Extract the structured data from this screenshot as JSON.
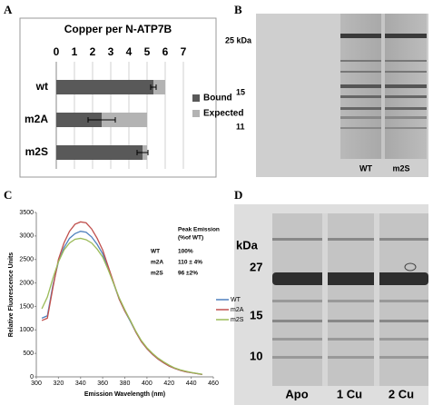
{
  "panel_labels": [
    "A",
    "B",
    "C",
    "D"
  ],
  "chart_data": [
    {
      "type": "hbar",
      "title": "Copper per N-ATP7B",
      "categories": [
        "wt",
        "m2A",
        "m2S"
      ],
      "series": [
        {
          "name": "Bound",
          "color": "#595959",
          "values": [
            5.35,
            2.5,
            4.75
          ],
          "errors": [
            0.15,
            0.75,
            0.3
          ]
        },
        {
          "name": "Expected",
          "color": "#b3b3b3",
          "values": [
            6,
            5,
            5
          ]
        }
      ],
      "xlim": [
        0,
        7
      ],
      "xticks": [
        0,
        1,
        2,
        3,
        4,
        5,
        6,
        7
      ],
      "grid": true
    },
    {
      "type": "line",
      "xlabel": "Emission Wavelength (nm)",
      "ylabel": "Relative Fluorescence Units",
      "x": [
        305,
        310,
        315,
        320,
        325,
        330,
        335,
        340,
        345,
        350,
        355,
        360,
        365,
        370,
        375,
        380,
        385,
        390,
        395,
        400,
        405,
        410,
        415,
        420,
        425,
        430,
        435,
        440,
        445,
        450
      ],
      "series": [
        {
          "name": "WT",
          "color": "#4f81bd",
          "values": [
            1250,
            1300,
            1950,
            2450,
            2750,
            2950,
            3050,
            3100,
            3080,
            2980,
            2820,
            2620,
            2300,
            1980,
            1650,
            1400,
            1180,
            950,
            750,
            600,
            480,
            380,
            300,
            230,
            180,
            140,
            110,
            90,
            70,
            50
          ]
        },
        {
          "name": "m2A",
          "color": "#c0504d",
          "values": [
            1200,
            1250,
            1900,
            2500,
            2850,
            3100,
            3250,
            3300,
            3280,
            3150,
            2950,
            2700,
            2350,
            2000,
            1650,
            1400,
            1200,
            950,
            750,
            600,
            480,
            380,
            300,
            230,
            180,
            140,
            110,
            90,
            70,
            50
          ]
        },
        {
          "name": "m2S",
          "color": "#9bbb59",
          "values": [
            1450,
            1700,
            2100,
            2450,
            2700,
            2850,
            2930,
            2950,
            2920,
            2850,
            2720,
            2550,
            2280,
            1980,
            1680,
            1430,
            1200,
            970,
            770,
            620,
            500,
            400,
            320,
            250,
            190,
            150,
            120,
            95,
            75,
            55
          ]
        }
      ],
      "xlim": [
        300,
        460
      ],
      "xticks": [
        300,
        320,
        340,
        360,
        380,
        400,
        420,
        440,
        460
      ],
      "ylim": [
        0,
        3500
      ],
      "yticks": [
        0,
        500,
        1000,
        1500,
        2000,
        2500,
        3000,
        3500
      ],
      "annotation_title": [
        "Peak Emission",
        "(%of WT)"
      ],
      "annotation_rows": [
        [
          "WT",
          "100%"
        ],
        [
          "m2A",
          "110 ± 4%"
        ],
        [
          "m2S",
          "96 ±2%"
        ]
      ]
    }
  ],
  "gels": [
    {
      "markers": [
        "25 kDa",
        "15",
        "11"
      ],
      "lanes": [
        "WT",
        "m2S"
      ]
    },
    {
      "unit": "kDa",
      "markers": [
        "27",
        "15",
        "10"
      ],
      "lanes": [
        "Apo",
        "1 Cu",
        "2 Cu"
      ]
    }
  ]
}
